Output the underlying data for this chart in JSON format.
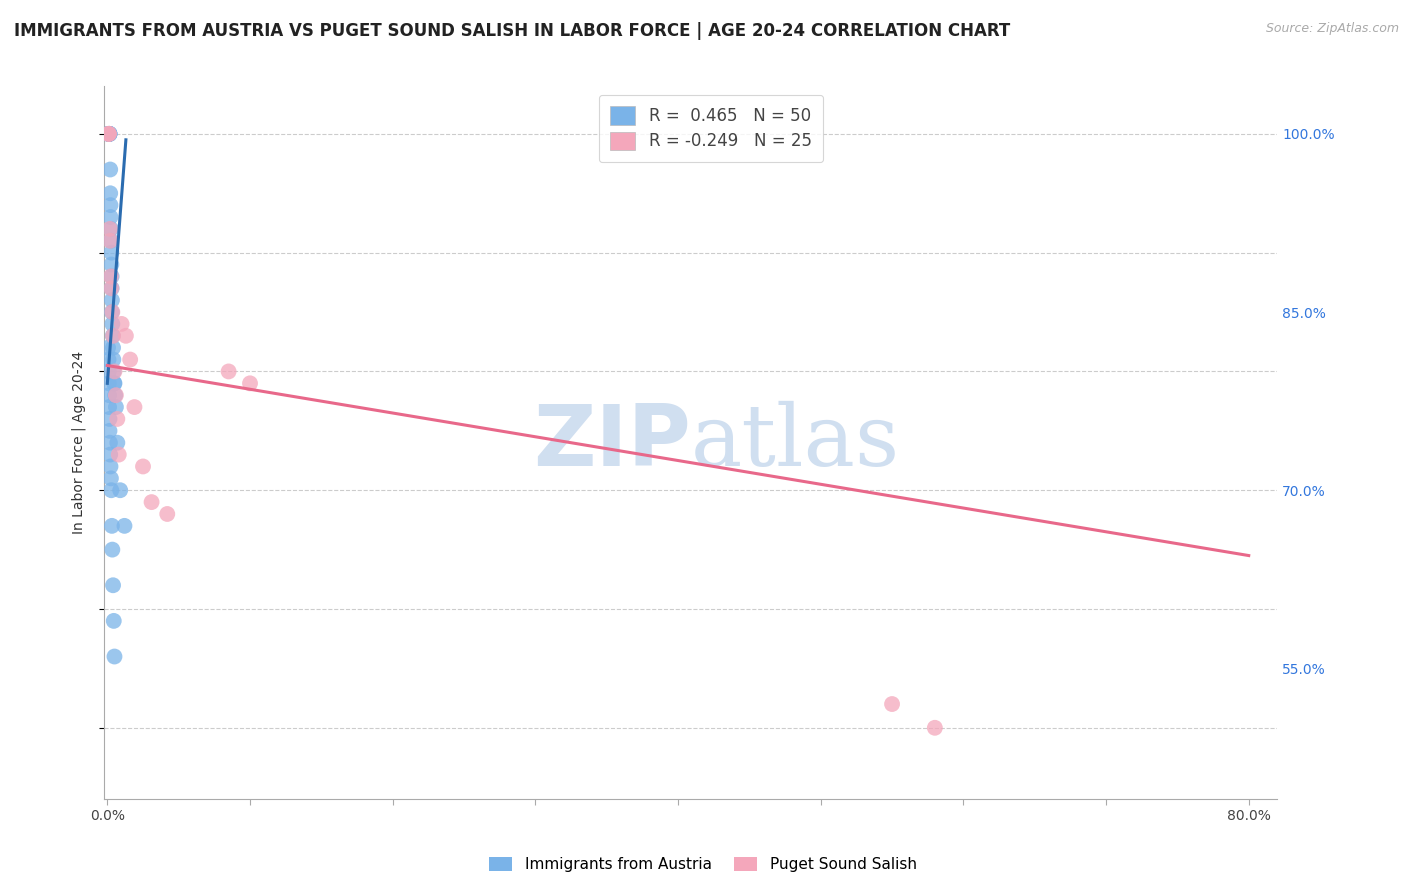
{
  "title": "IMMIGRANTS FROM AUSTRIA VS PUGET SOUND SALISH IN LABOR FORCE | AGE 20-24 CORRELATION CHART",
  "source": "Source: ZipAtlas.com",
  "ylabel": "In Labor Force | Age 20-24",
  "xlim": [
    -0.002,
    0.82
  ],
  "ylim": [
    0.44,
    1.04
  ],
  "xtick_positions": [
    0.0,
    0.1,
    0.2,
    0.3,
    0.4,
    0.5,
    0.6,
    0.7,
    0.8
  ],
  "ytick_positions": [
    0.55,
    0.7,
    0.85,
    1.0
  ],
  "ytick_labels": [
    "55.0%",
    "70.0%",
    "85.0%",
    "100.0%"
  ],
  "blue_color": "#7ab3e8",
  "pink_color": "#f4a7bb",
  "trend_blue": "#2b6cb0",
  "trend_pink": "#e8688a",
  "watermark_color": "#d0dff0",
  "blue_scatter_x": [
    0.0005,
    0.001,
    0.001,
    0.0012,
    0.0012,
    0.0015,
    0.0015,
    0.0015,
    0.0015,
    0.002,
    0.002,
    0.0022,
    0.0022,
    0.0025,
    0.0025,
    0.0028,
    0.0028,
    0.003,
    0.003,
    0.0032,
    0.0032,
    0.0035,
    0.0038,
    0.004,
    0.0042,
    0.0045,
    0.0048,
    0.005,
    0.0055,
    0.006,
    0.007,
    0.009,
    0.012,
    0.0005,
    0.0008,
    0.001,
    0.001,
    0.0012,
    0.0012,
    0.0015,
    0.0015,
    0.0018,
    0.002,
    0.0022,
    0.0025,
    0.0028,
    0.0032,
    0.0035,
    0.004,
    0.0045,
    0.005
  ],
  "blue_scatter_y": [
    1.0,
    1.0,
    1.0,
    1.0,
    1.0,
    1.0,
    1.0,
    1.0,
    1.0,
    0.97,
    0.95,
    0.94,
    0.93,
    0.92,
    0.91,
    0.9,
    0.89,
    0.88,
    0.87,
    0.86,
    0.85,
    0.84,
    0.83,
    0.82,
    0.81,
    0.8,
    0.79,
    0.79,
    0.78,
    0.77,
    0.74,
    0.7,
    0.67,
    0.82,
    0.81,
    0.8,
    0.79,
    0.78,
    0.77,
    0.76,
    0.75,
    0.74,
    0.73,
    0.72,
    0.71,
    0.7,
    0.67,
    0.65,
    0.62,
    0.59,
    0.56
  ],
  "pink_scatter_x": [
    0.0008,
    0.001,
    0.0012,
    0.0018,
    0.002,
    0.0025,
    0.0028,
    0.0035,
    0.004,
    0.005,
    0.006,
    0.007,
    0.008,
    0.01,
    0.013,
    0.016,
    0.019,
    0.025,
    0.031,
    0.042,
    0.085,
    0.1,
    0.55,
    0.58
  ],
  "pink_scatter_y": [
    1.0,
    1.0,
    1.0,
    0.92,
    0.91,
    0.88,
    0.87,
    0.85,
    0.83,
    0.8,
    0.78,
    0.76,
    0.73,
    0.84,
    0.83,
    0.81,
    0.77,
    0.72,
    0.69,
    0.68,
    0.8,
    0.79,
    0.52,
    0.5
  ],
  "blue_trend_x": [
    0.0,
    0.013
  ],
  "blue_trend_y": [
    0.79,
    0.995
  ],
  "pink_trend_x": [
    0.0,
    0.8
  ],
  "pink_trend_y": [
    0.805,
    0.645
  ],
  "title_fontsize": 12,
  "source_fontsize": 9,
  "axis_label_fontsize": 10,
  "tick_fontsize": 10,
  "legend_fontsize": 12
}
